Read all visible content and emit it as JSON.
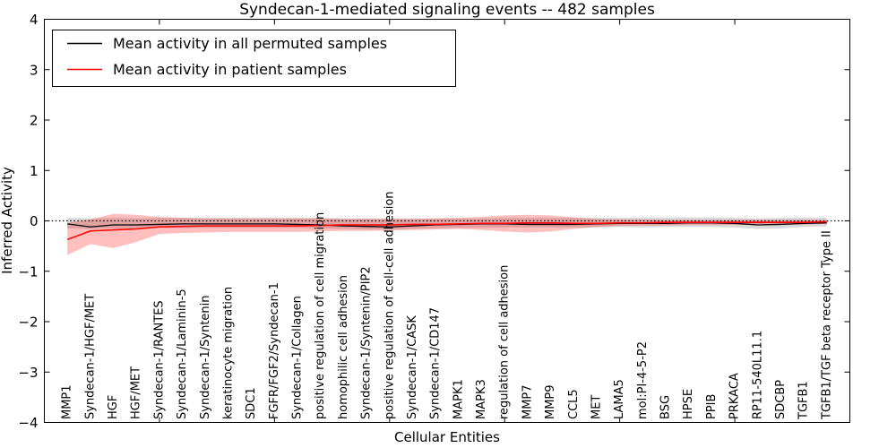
{
  "chart_data": {
    "type": "line",
    "title": "Syndecan-1-mediated signaling events -- 482 samples",
    "xlabel": "Cellular Entities",
    "ylabel": "Inferred Activity",
    "ylim": [
      -4,
      4
    ],
    "ytick_values": [
      4,
      3,
      2,
      1,
      0,
      -1,
      -2,
      -3,
      -4
    ],
    "ytick_labels": [
      "4",
      "3",
      "2",
      "1",
      "0",
      "−1",
      "−2",
      "−3",
      "−4"
    ],
    "xtick_positions": [
      5,
      10,
      15,
      20,
      25,
      30
    ],
    "grid": false,
    "zero_line": {
      "value": 0,
      "style": "dotted",
      "color": "#000000"
    },
    "legend_position": "upper-left",
    "categories": [
      "MMP1",
      "Syndecan-1/HGF/MET",
      "HGF",
      "HGF/MET",
      "Syndecan-1/RANTES",
      "Syndecan-1/Laminin-5",
      "Syndecan-1/Syntenin",
      "keratinocyte migration",
      "SDC1",
      "FGFR/FGF2/Syndecan-1",
      "Syndecan-1/Collagen",
      "positive regulation of cell migration",
      "homophilic cell adhesion",
      "Syndecan-1/Syntenin/PIP2",
      "positive regulation of cell-cell adhesion",
      "Syndecan-1/CASK",
      "Syndecan-1/CD147",
      "MAPK1",
      "MAPK3",
      "regulation of cell adhesion",
      "MMP7",
      "MMP9",
      "CCL5",
      "MET",
      "LAMA5",
      "mol:PI-4-5-P2",
      "BSG",
      "HPSE",
      "PPIB",
      "PRKACA",
      "RP11-540L11.1",
      "SDCBP",
      "TGFB1",
      "TGFB1/TGF beta receptor Type II"
    ],
    "series": [
      {
        "name": "Mean activity in all permuted samples",
        "color": "#000000",
        "band_color": "rgba(128,128,128,0.30)",
        "values": [
          -0.06,
          -0.12,
          -0.08,
          -0.08,
          -0.07,
          -0.06,
          -0.06,
          -0.06,
          -0.06,
          -0.06,
          -0.07,
          -0.08,
          -0.1,
          -0.11,
          -0.12,
          -0.1,
          -0.08,
          -0.07,
          -0.06,
          -0.06,
          -0.07,
          -0.07,
          -0.07,
          -0.06,
          -0.05,
          -0.05,
          -0.05,
          -0.04,
          -0.04,
          -0.05,
          -0.08,
          -0.07,
          -0.05,
          -0.04
        ],
        "band_upper": [
          0.06,
          0.05,
          0.06,
          0.05,
          0.06,
          0.06,
          0.06,
          0.06,
          0.06,
          0.06,
          0.06,
          0.06,
          0.05,
          0.05,
          0.05,
          0.05,
          0.05,
          0.05,
          0.05,
          0.06,
          0.06,
          0.06,
          0.06,
          0.06,
          0.06,
          0.07,
          0.07,
          0.07,
          0.07,
          0.06,
          0.05,
          0.06,
          0.07,
          0.06
        ],
        "band_lower": [
          -0.15,
          -0.16,
          -0.15,
          -0.15,
          -0.14,
          -0.14,
          -0.14,
          -0.14,
          -0.14,
          -0.14,
          -0.14,
          -0.15,
          -0.16,
          -0.17,
          -0.17,
          -0.16,
          -0.15,
          -0.14,
          -0.14,
          -0.13,
          -0.13,
          -0.13,
          -0.13,
          -0.13,
          -0.12,
          -0.13,
          -0.12,
          -0.12,
          -0.12,
          -0.13,
          -0.16,
          -0.15,
          -0.12,
          -0.11
        ]
      },
      {
        "name": "Mean activity in patient samples",
        "color": "#ff0000",
        "band_color": "rgba(255,0,0,0.25)",
        "values": [
          -0.37,
          -0.2,
          -0.18,
          -0.16,
          -0.12,
          -0.11,
          -0.1,
          -0.1,
          -0.1,
          -0.1,
          -0.1,
          -0.09,
          -0.08,
          -0.08,
          -0.08,
          -0.07,
          -0.07,
          -0.06,
          -0.05,
          -0.05,
          -0.04,
          -0.04,
          -0.05,
          -0.05,
          -0.04,
          -0.04,
          -0.03,
          -0.03,
          -0.03,
          -0.03,
          -0.03,
          -0.03,
          -0.03,
          -0.02
        ],
        "band_upper": [
          -0.04,
          0.03,
          0.14,
          0.12,
          0.08,
          0.06,
          0.05,
          0.05,
          0.05,
          0.05,
          0.05,
          0.05,
          0.04,
          0.04,
          0.04,
          0.04,
          0.05,
          0.06,
          0.08,
          0.11,
          0.12,
          0.11,
          0.07,
          0.04,
          0.03,
          0.03,
          0.02,
          0.02,
          0.02,
          0.02,
          0.02,
          0.02,
          0.02,
          0.02
        ],
        "band_lower": [
          -0.68,
          -0.46,
          -0.54,
          -0.42,
          -0.26,
          -0.24,
          -0.23,
          -0.22,
          -0.22,
          -0.22,
          -0.22,
          -0.21,
          -0.2,
          -0.2,
          -0.19,
          -0.18,
          -0.17,
          -0.16,
          -0.18,
          -0.21,
          -0.23,
          -0.21,
          -0.16,
          -0.12,
          -0.1,
          -0.09,
          -0.09,
          -0.08,
          -0.08,
          -0.08,
          -0.08,
          -0.08,
          -0.07,
          -0.06
        ]
      }
    ]
  }
}
